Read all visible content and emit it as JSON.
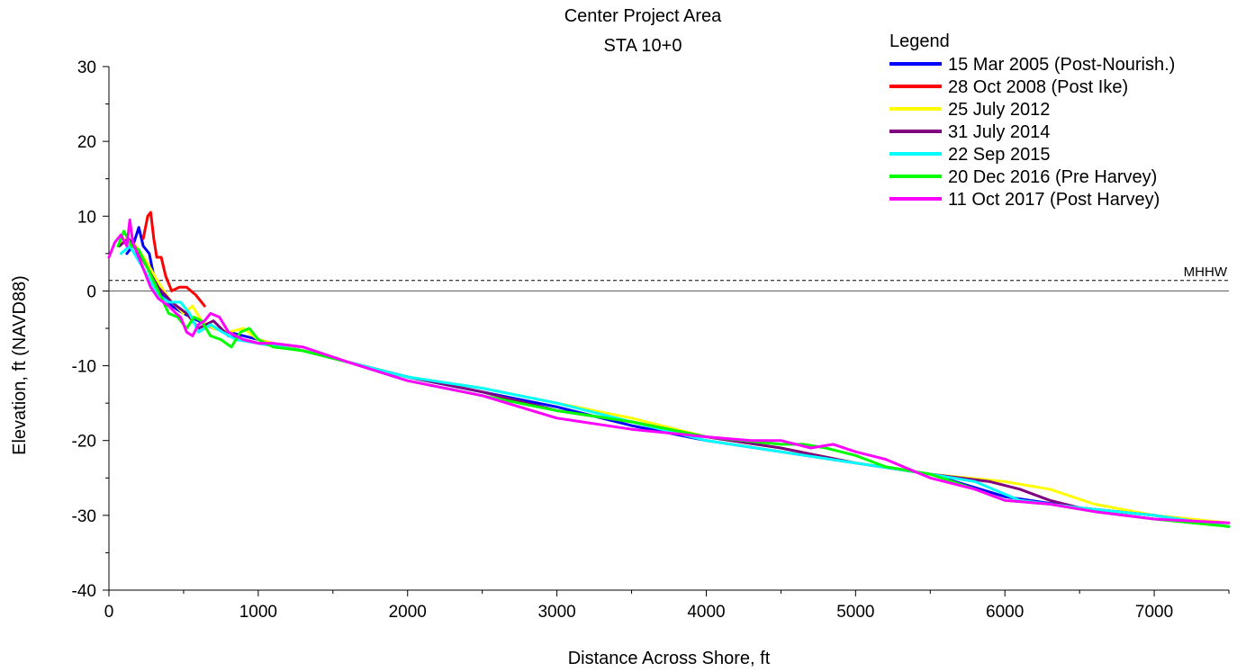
{
  "chart_data": {
    "type": "line",
    "title": "Center Project Area",
    "subtitle": "STA 10+0",
    "xlabel": "Distance Across Shore, ft",
    "ylabel": "Elevation, ft (NAVD88)",
    "xlim": [
      0,
      7500
    ],
    "ylim": [
      -40,
      30
    ],
    "xticks": [
      0,
      1000,
      2000,
      3000,
      4000,
      5000,
      6000,
      7000
    ],
    "yticks": [
      -40,
      -30,
      -20,
      -10,
      0,
      10,
      20,
      30
    ],
    "grid": false,
    "legend": {
      "title": "Legend",
      "placement": "top-right"
    },
    "reference_lines": [
      {
        "label": "MHHW",
        "y": 1.4,
        "style": "dashed"
      },
      {
        "label": "",
        "y": 0,
        "style": "solid"
      }
    ],
    "series": [
      {
        "name": "15 Mar 2005 (Post-Nourish.)",
        "color": "#0000ff",
        "x": [
          120,
          160,
          200,
          230,
          270,
          300,
          350,
          420,
          500,
          600,
          700,
          900,
          1100,
          1500,
          2000,
          2500,
          3000,
          3500,
          4000,
          4500,
          5000,
          5500,
          6000,
          6500,
          7000,
          7500
        ],
        "y": [
          5,
          6,
          8.5,
          6,
          5,
          2,
          -0.5,
          -2,
          -3,
          -4,
          -5,
          -6,
          -7,
          -9,
          -11.5,
          -13.5,
          -15.5,
          -18,
          -20,
          -21.5,
          -23,
          -24.5,
          -27.5,
          -29,
          -30,
          -31.5
        ]
      },
      {
        "name": "28 Oct 2008 (Post Ike)",
        "color": "#ff0000",
        "x": [
          230,
          260,
          280,
          300,
          320,
          350,
          380,
          420,
          470,
          520,
          580,
          640
        ],
        "y": [
          7,
          10,
          10.5,
          7,
          4.5,
          4.5,
          2,
          0,
          0.5,
          0.5,
          -0.5,
          -2
        ]
      },
      {
        "name": "25 July 2012",
        "color": "#ffff00",
        "x": [
          60,
          120,
          180,
          250,
          320,
          400,
          500,
          560,
          620,
          700,
          800,
          900,
          1000,
          1200,
          1500,
          2000,
          2500,
          3000,
          3500,
          4000,
          4500,
          5000,
          5500,
          6000,
          6300,
          6600,
          7000,
          7500
        ],
        "y": [
          6,
          7,
          6,
          4,
          1.5,
          -1,
          -3,
          -2,
          -4,
          -5,
          -5.5,
          -5,
          -6.5,
          -7.5,
          -9,
          -11.5,
          -13,
          -15,
          -17,
          -19.5,
          -21,
          -23,
          -24.5,
          -25.5,
          -26.5,
          -28.5,
          -30,
          -31
        ]
      },
      {
        "name": "31 July 2014",
        "color": "#800080",
        "x": [
          70,
          130,
          190,
          260,
          330,
          420,
          520,
          600,
          700,
          800,
          1000,
          1300,
          1600,
          2000,
          2500,
          3000,
          3500,
          4000,
          4500,
          5000,
          5500,
          5900,
          6100,
          6300,
          6500,
          7000,
          7500
        ],
        "y": [
          6,
          7,
          5.5,
          3,
          0.5,
          -1.5,
          -3,
          -5,
          -4,
          -6,
          -7,
          -8,
          -9.5,
          -11.5,
          -13.5,
          -16,
          -17.5,
          -19.5,
          -21,
          -23,
          -24.5,
          -25.5,
          -26.5,
          -28,
          -29,
          -30,
          -31.5
        ]
      },
      {
        "name": "22 Sep 2015",
        "color": "#00ffff",
        "x": [
          80,
          140,
          200,
          260,
          330,
          400,
          480,
          540,
          600,
          680,
          760,
          850,
          1000,
          1300,
          1600,
          2000,
          2500,
          3000,
          3500,
          4000,
          4500,
          5000,
          5500,
          5800,
          6100,
          6500,
          7000,
          7500
        ],
        "y": [
          5,
          6,
          4,
          2,
          -0.5,
          -1.5,
          -1.5,
          -3,
          -5.5,
          -4.5,
          -5.5,
          -6.5,
          -7,
          -8,
          -9.5,
          -11.5,
          -13,
          -15,
          -17.5,
          -20,
          -21.5,
          -23,
          -24.5,
          -25.5,
          -28,
          -29,
          -30,
          -31.5
        ]
      },
      {
        "name": "20 Dec 2016 (Pre Harvey)",
        "color": "#00ff00",
        "x": [
          60,
          100,
          150,
          200,
          260,
          330,
          400,
          460,
          520,
          570,
          620,
          680,
          750,
          820,
          880,
          940,
          1000,
          1100,
          1300,
          1600,
          2000,
          2500,
          3000,
          3500,
          4000,
          4500,
          4650,
          4800,
          5000,
          5200,
          5500,
          5800,
          6000,
          6300,
          6600,
          7000,
          7500
        ],
        "y": [
          6,
          8,
          6,
          5.5,
          3,
          0,
          -3,
          -3.5,
          -5,
          -3.5,
          -4,
          -6,
          -6.5,
          -7.5,
          -5.5,
          -5,
          -6.5,
          -7.5,
          -8,
          -9.5,
          -12,
          -14,
          -16,
          -17.5,
          -19.5,
          -20.5,
          -20.5,
          -21,
          -22,
          -23.5,
          -24.5,
          -26.5,
          -28,
          -28.5,
          -29.5,
          -30.5,
          -31.5
        ]
      },
      {
        "name": "11 Oct 2017 (Post Harvey)",
        "color": "#ff00ff",
        "x": [
          0,
          40,
          80,
          120,
          140,
          160,
          190,
          230,
          280,
          330,
          400,
          450,
          480,
          520,
          560,
          600,
          640,
          680,
          740,
          800,
          900,
          1000,
          1100,
          1300,
          1600,
          2000,
          2500,
          3000,
          3500,
          4000,
          4300,
          4500,
          4700,
          4850,
          5000,
          5200,
          5500,
          5800,
          6000,
          6300,
          6600,
          7000,
          7500
        ],
        "y": [
          4.5,
          6.5,
          7.5,
          6,
          9.5,
          6.5,
          5,
          3,
          0.5,
          -1,
          -2,
          -3,
          -3.5,
          -5.5,
          -6,
          -4.5,
          -4,
          -3,
          -3.5,
          -5.5,
          -6.5,
          -7,
          -7,
          -7.5,
          -9.5,
          -12,
          -14,
          -17,
          -18.5,
          -19.5,
          -20,
          -20,
          -21,
          -20.5,
          -21.5,
          -22.5,
          -25,
          -26.5,
          -28,
          -28.5,
          -29.5,
          -30.5,
          -31
        ]
      }
    ]
  }
}
